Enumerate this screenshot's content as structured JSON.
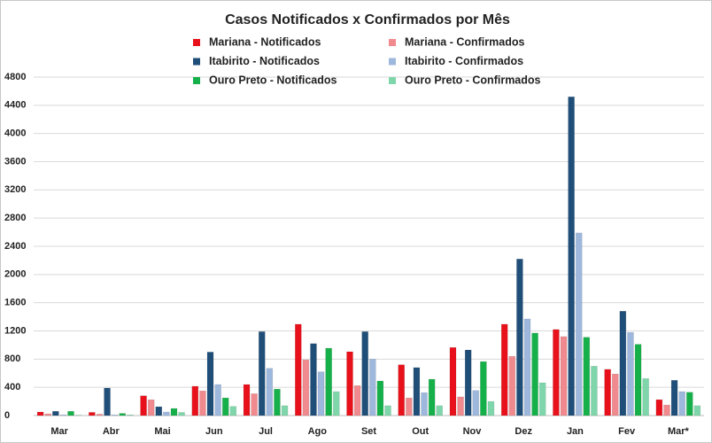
{
  "chart_data": {
    "type": "bar",
    "title": "Casos Notificados x Confirmados por Mês",
    "categories": [
      "Mar",
      "Abr",
      "Mai",
      "Jun",
      "Jul",
      "Ago",
      "Set",
      "Out",
      "Nov",
      "Dez",
      "Jan",
      "Fev",
      "Mar*"
    ],
    "series": [
      {
        "name": "Mariana - Notificados",
        "color": "#e8101a",
        "values": [
          50,
          45,
          280,
          415,
          440,
          1295,
          905,
          720,
          965,
          1295,
          1220,
          655,
          225
        ]
      },
      {
        "name": "Mariana - Confirmados",
        "color": "#f08a8e",
        "values": [
          25,
          20,
          225,
          350,
          310,
          790,
          425,
          250,
          265,
          840,
          1120,
          590,
          150
        ]
      },
      {
        "name": "Itabirito - Notificados",
        "color": "#1f4e79",
        "values": [
          60,
          390,
          125,
          900,
          1190,
          1020,
          1190,
          680,
          930,
          2220,
          4520,
          1480,
          500
        ]
      },
      {
        "name": "Itabirito - Confirmados",
        "color": "#9db8dc",
        "values": [
          10,
          10,
          50,
          440,
          670,
          620,
          800,
          325,
          355,
          1370,
          2590,
          1180,
          340
        ]
      },
      {
        "name": "Ouro Preto - Notificados",
        "color": "#16b04a",
        "values": [
          60,
          30,
          100,
          250,
          375,
          955,
          490,
          515,
          765,
          1170,
          1110,
          1010,
          330
        ]
      },
      {
        "name": "Ouro Preto - Confirmados",
        "color": "#7fd6ab",
        "values": [
          5,
          10,
          45,
          130,
          140,
          340,
          140,
          140,
          200,
          465,
          700,
          525,
          140
        ]
      }
    ],
    "ylim": [
      0,
      4800
    ],
    "yticks": [
      0,
      400,
      800,
      1200,
      1600,
      2000,
      2400,
      2800,
      3200,
      3600,
      4000,
      4400,
      4800
    ],
    "grid": true
  }
}
